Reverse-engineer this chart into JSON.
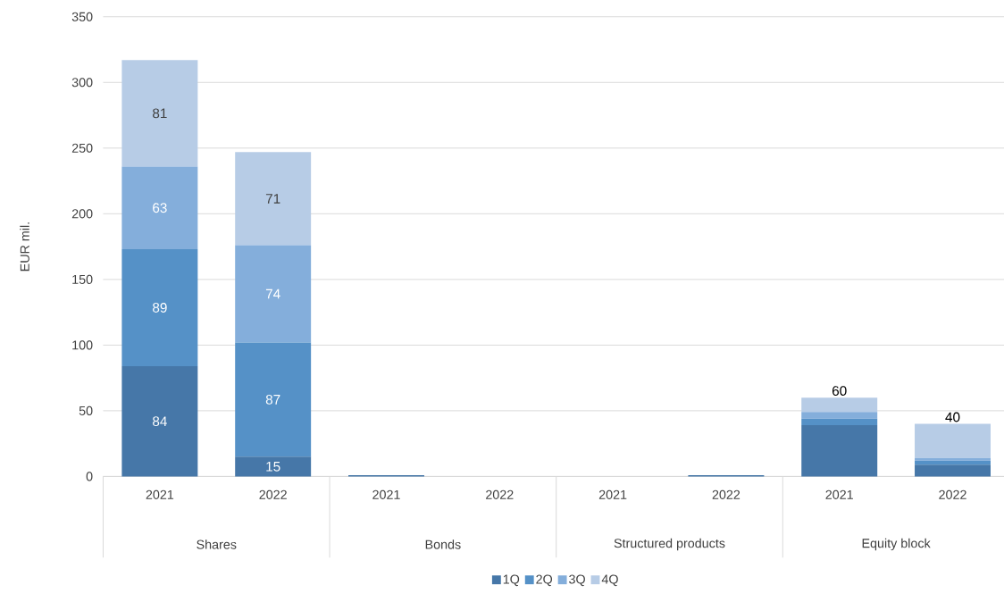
{
  "chart_data": {
    "type": "bar",
    "stacked": true,
    "ylabel": "EUR mil.",
    "categories": [
      "2021",
      "2022",
      "2021",
      "2022",
      "2021",
      "2022",
      "2021",
      "2022"
    ],
    "annotations": [
      "Shares",
      "Bonds",
      "Structured products",
      "Equity block"
    ],
    "series": [
      {
        "name": "1Q",
        "color": "#4677a8",
        "values": [
          84,
          15,
          1,
          0,
          0,
          1,
          39,
          9
        ],
        "value_labels": [
          "84",
          "15",
          null,
          null,
          null,
          null,
          null,
          null
        ]
      },
      {
        "name": "2Q",
        "color": "#5591c7",
        "values": [
          89,
          87,
          0,
          0,
          0,
          0,
          5,
          3
        ],
        "value_labels": [
          "89",
          "87",
          null,
          null,
          null,
          null,
          null,
          null
        ]
      },
      {
        "name": "3Q",
        "color": "#84aedb",
        "values": [
          63,
          74,
          0,
          0,
          0,
          0,
          5,
          2
        ],
        "value_labels": [
          "63",
          "74",
          null,
          null,
          null,
          null,
          null,
          null
        ]
      },
      {
        "name": "4Q",
        "color": "#b7cce6",
        "values": [
          81,
          71,
          0,
          0,
          0,
          0,
          11,
          26
        ],
        "value_labels": [
          "81",
          "71",
          null,
          null,
          null,
          null,
          null,
          null
        ]
      }
    ],
    "totals": [
      null,
      null,
      null,
      null,
      null,
      null,
      "60",
      "40"
    ],
    "ylim": [
      0,
      350
    ],
    "yticks": [
      0,
      50,
      100,
      150,
      200,
      250,
      300,
      350
    ],
    "grid": "y",
    "legend": "bottom",
    "marker": "square"
  }
}
